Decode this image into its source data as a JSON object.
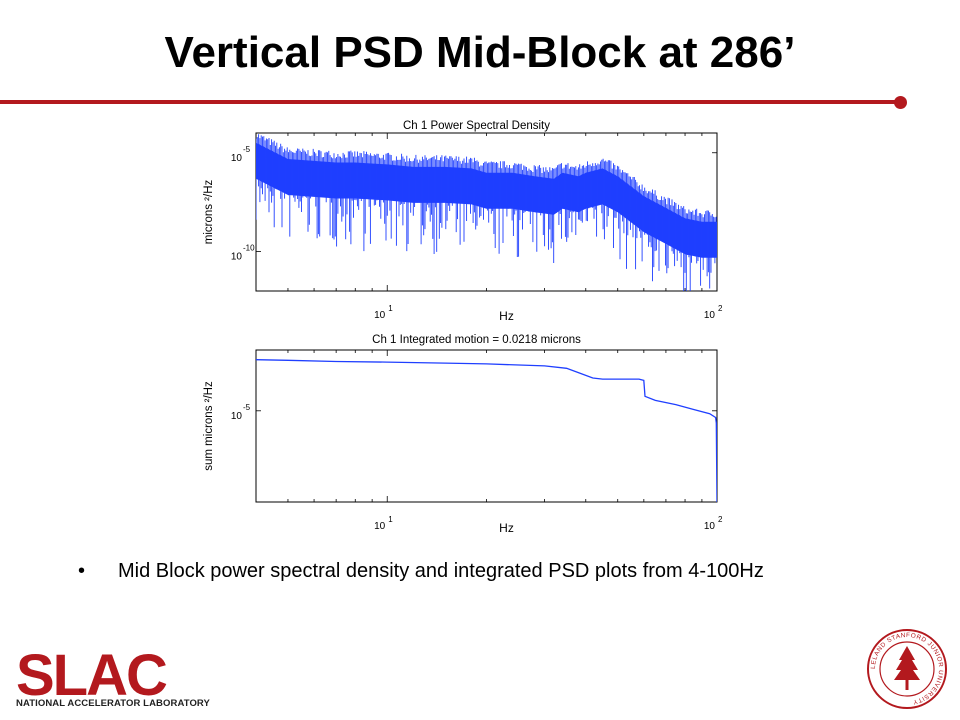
{
  "slide": {
    "title": "Vertical PSD Mid-Block at 286’",
    "bullet_marker": "•",
    "bullet": "Mid Block power spectral density and integrated PSD plots from 4-100Hz"
  },
  "branding": {
    "logo_text": "SLAC",
    "logo_tagline": "NATIONAL ACCELERATOR LABORATORY",
    "seal_text": "LELAND STANFORD JUNIOR UNIVERSITY",
    "accent_color": "#b3191e"
  },
  "chart_data": [
    {
      "type": "line",
      "title": "Ch 1  Power Spectral Density",
      "xlabel": "Hz",
      "ylabel": "microns ²/Hz",
      "x_scale": "log",
      "y_scale": "log",
      "xlim": [
        4,
        100
      ],
      "ylim": [
        1e-12,
        0.0001
      ],
      "x_ticks": [
        {
          "value": 10,
          "base": "10",
          "exp": "1"
        },
        {
          "value": 100,
          "base": "10",
          "exp": "2"
        }
      ],
      "y_ticks": [
        {
          "value": 1e-05,
          "base": "10",
          "exp": "-5"
        },
        {
          "value": 1e-10,
          "base": "10",
          "exp": "-10"
        }
      ],
      "grid": false,
      "series": [
        {
          "color": "#1f3fff",
          "x": [
            4,
            5,
            6,
            7,
            8,
            10,
            12,
            15,
            18,
            20,
            24,
            28,
            32,
            34,
            38,
            40,
            45,
            50,
            60,
            70,
            80,
            90,
            100
          ],
          "y": [
            1e-05,
            1.5e-06,
            1.2e-06,
            1e-06,
            1e-06,
            8e-07,
            6e-07,
            6e-07,
            5e-07,
            3e-07,
            3e-07,
            2e-07,
            1.5e-07,
            3e-07,
            2e-07,
            3e-07,
            5e-07,
            2e-07,
            2e-08,
            5e-09,
            1.5e-09,
            1e-09,
            1e-09
          ]
        }
      ]
    },
    {
      "type": "line",
      "title": "Ch 1  Integrated motion =  0.0218 microns",
      "xlabel": "Hz",
      "ylabel": "sum microns ²/Hz",
      "x_scale": "log",
      "y_scale": "log",
      "xlim": [
        4,
        100
      ],
      "ylim": [
        1e-08,
        0.001
      ],
      "x_ticks": [
        {
          "value": 10,
          "base": "10",
          "exp": "1"
        },
        {
          "value": 100,
          "base": "10",
          "exp": "2"
        }
      ],
      "y_ticks": [
        {
          "value": 1e-05,
          "base": "10",
          "exp": "-5"
        }
      ],
      "grid": false,
      "series": [
        {
          "color": "#1f3fff",
          "x": [
            4,
            5,
            7,
            10,
            15,
            20,
            30,
            35,
            38,
            42,
            45,
            50,
            58,
            60,
            60.5,
            65,
            75,
            85,
            95,
            99,
            99.5,
            100
          ],
          "y": [
            0.00048,
            0.00046,
            0.00042,
            0.0004,
            0.00037,
            0.00035,
            0.0003,
            0.00025,
            0.00018,
            0.00012,
            0.00011,
            0.00011,
            0.00011,
            0.0001,
            3e-05,
            2.2e-05,
            1.6e-05,
            1.1e-05,
            8e-06,
            6e-06,
            4e-06,
            1e-08
          ]
        }
      ]
    }
  ]
}
